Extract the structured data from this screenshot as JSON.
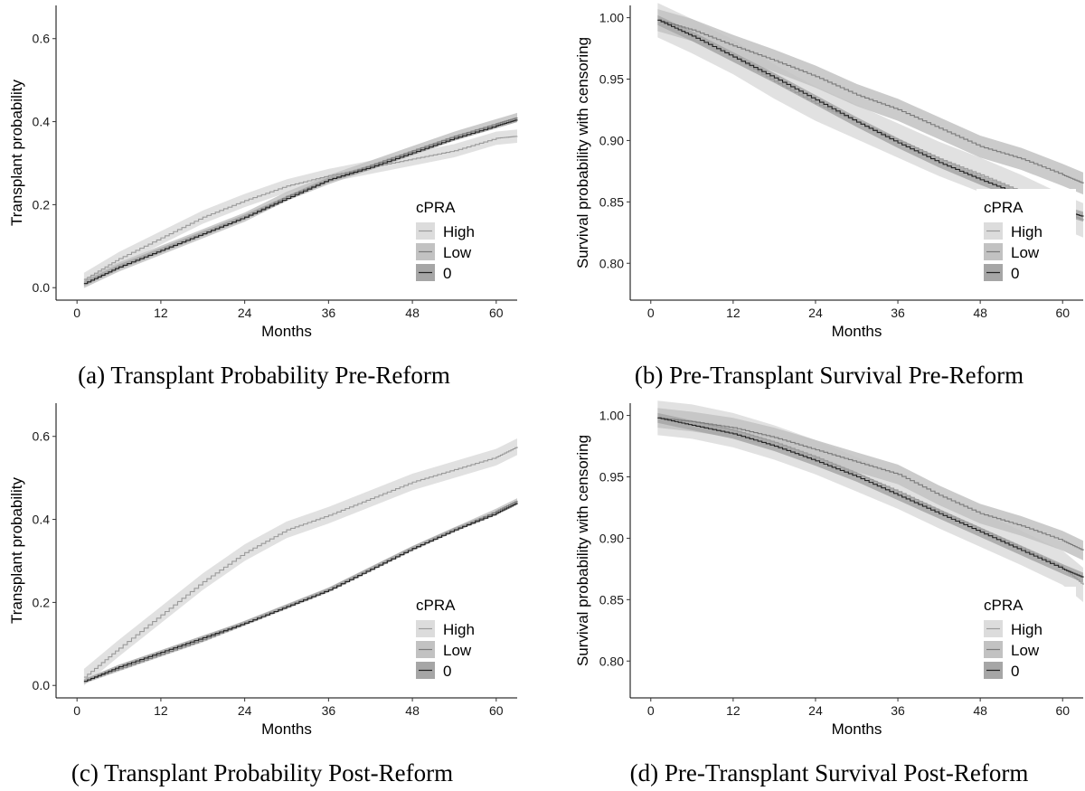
{
  "chart_data": [
    {
      "type": "line",
      "caption": "(a) Transplant Probability Pre-Reform",
      "xlabel": "Months",
      "ylabel": "Transplant probability",
      "xlim": [
        -3,
        63
      ],
      "ylim": [
        -0.03,
        0.68
      ],
      "xticks": [
        0,
        12,
        24,
        36,
        48,
        60
      ],
      "xtick_labels": [
        "0",
        "12",
        "24",
        "36",
        "48",
        "60"
      ],
      "yticks": [
        0.0,
        0.2,
        0.4,
        0.6
      ],
      "ytick_labels": [
        "0.0",
        "0.2",
        "0.4",
        "0.6"
      ],
      "legend": {
        "title": "cPRA",
        "position": "right",
        "entries": [
          "High",
          "Low",
          "0"
        ]
      },
      "series": [
        {
          "name": "High",
          "color": "#9a9a9a",
          "band": "#dcdcdc",
          "band_half": 0.016,
          "x": [
            1,
            6,
            12,
            18,
            24,
            30,
            36,
            42,
            48,
            54,
            60,
            63
          ],
          "values": [
            0.02,
            0.07,
            0.12,
            0.17,
            0.21,
            0.245,
            0.27,
            0.29,
            0.31,
            0.33,
            0.36,
            0.365
          ]
        },
        {
          "name": "Low",
          "color": "#7a7a7a",
          "band": "#c2c2c2",
          "band_half": 0.011,
          "x": [
            1,
            6,
            12,
            18,
            24,
            30,
            36,
            42,
            48,
            54,
            60,
            63
          ],
          "values": [
            0.01,
            0.05,
            0.09,
            0.13,
            0.17,
            0.22,
            0.26,
            0.295,
            0.33,
            0.365,
            0.395,
            0.41
          ]
        },
        {
          "name": "0",
          "color": "#222222",
          "band": "#a6a6a6",
          "band_half": 0.006,
          "x": [
            1,
            6,
            12,
            18,
            24,
            30,
            36,
            42,
            48,
            54,
            60,
            63
          ],
          "values": [
            0.01,
            0.05,
            0.09,
            0.13,
            0.17,
            0.215,
            0.26,
            0.29,
            0.325,
            0.36,
            0.39,
            0.405
          ]
        }
      ]
    },
    {
      "type": "line",
      "caption": "(b) Pre-Transplant Survival Pre-Reform",
      "xlabel": "Months",
      "ylabel": "Survival probability with censoring",
      "xlim": [
        -3,
        63
      ],
      "ylim": [
        0.77,
        1.01
      ],
      "xticks": [
        0,
        12,
        24,
        36,
        48,
        60
      ],
      "xtick_labels": [
        "0",
        "12",
        "24",
        "36",
        "48",
        "60"
      ],
      "yticks": [
        0.8,
        0.85,
        0.9,
        0.95,
        1.0
      ],
      "ytick_labels": [
        "0.80",
        "0.85",
        "0.90",
        "0.95",
        "1.00"
      ],
      "legend": {
        "title": "cPRA",
        "position": "right",
        "entries": [
          "High",
          "Low",
          "0"
        ]
      },
      "series": [
        {
          "name": "High",
          "color": "#9a9a9a",
          "band": "#dcdcdc",
          "band_half": 0.014,
          "x": [
            1,
            6,
            12,
            18,
            24,
            30,
            36,
            42,
            48,
            54,
            60,
            63
          ],
          "values": [
            0.998,
            0.985,
            0.968,
            0.948,
            0.93,
            0.915,
            0.9,
            0.885,
            0.872,
            0.858,
            0.842,
            0.835
          ]
        },
        {
          "name": "Low",
          "color": "#7a7a7a",
          "band": "#c2c2c2",
          "band_half": 0.009,
          "x": [
            1,
            6,
            12,
            18,
            24,
            30,
            36,
            42,
            48,
            54,
            60,
            63
          ],
          "values": [
            0.998,
            0.99,
            0.977,
            0.965,
            0.952,
            0.937,
            0.925,
            0.91,
            0.895,
            0.885,
            0.872,
            0.865
          ]
        },
        {
          "name": "0",
          "color": "#222222",
          "band": "#a6a6a6",
          "band_half": 0.004,
          "x": [
            1,
            6,
            12,
            18,
            24,
            30,
            36,
            42,
            48,
            54,
            60,
            63
          ],
          "values": [
            0.998,
            0.985,
            0.968,
            0.951,
            0.933,
            0.915,
            0.898,
            0.882,
            0.868,
            0.855,
            0.843,
            0.838
          ]
        }
      ]
    },
    {
      "type": "line",
      "caption": "(c) Transplant Probability Post-Reform",
      "xlabel": "Months",
      "ylabel": "Transplant probability",
      "xlim": [
        -3,
        63
      ],
      "ylim": [
        -0.03,
        0.68
      ],
      "xticks": [
        0,
        12,
        24,
        36,
        48,
        60
      ],
      "xtick_labels": [
        "0",
        "12",
        "24",
        "36",
        "48",
        "60"
      ],
      "yticks": [
        0.0,
        0.2,
        0.4,
        0.6
      ],
      "ytick_labels": [
        "0.0",
        "0.2",
        "0.4",
        "0.6"
      ],
      "legend": {
        "title": "cPRA",
        "position": "right",
        "entries": [
          "High",
          "Low",
          "0"
        ]
      },
      "series": [
        {
          "name": "High",
          "color": "#9a9a9a",
          "band": "#dcdcdc",
          "band_half": 0.02,
          "x": [
            1,
            6,
            12,
            18,
            24,
            30,
            36,
            42,
            48,
            54,
            60,
            63
          ],
          "values": [
            0.02,
            0.09,
            0.17,
            0.25,
            0.32,
            0.375,
            0.41,
            0.45,
            0.49,
            0.52,
            0.55,
            0.575
          ]
        },
        {
          "name": "Low",
          "color": "#7a7a7a",
          "band": "#c2c2c2",
          "band_half": 0.006,
          "x": [
            1,
            6,
            12,
            18,
            24,
            30,
            36,
            42,
            48,
            54,
            60,
            63
          ],
          "values": [
            0.01,
            0.04,
            0.075,
            0.11,
            0.15,
            0.19,
            0.23,
            0.28,
            0.33,
            0.375,
            0.42,
            0.445
          ]
        },
        {
          "name": "0",
          "color": "#222222",
          "band": "#a6a6a6",
          "band_half": 0.005,
          "x": [
            1,
            6,
            12,
            18,
            24,
            30,
            36,
            42,
            48,
            54,
            60,
            63
          ],
          "values": [
            0.01,
            0.045,
            0.08,
            0.115,
            0.15,
            0.19,
            0.23,
            0.28,
            0.33,
            0.375,
            0.415,
            0.44
          ]
        }
      ]
    },
    {
      "type": "line",
      "caption": "(d) Pre-Transplant Survival Post-Reform",
      "xlabel": "Months",
      "ylabel": "Survival probability with censoring",
      "xlim": [
        -3,
        63
      ],
      "ylim": [
        0.77,
        1.01
      ],
      "xticks": [
        0,
        12,
        24,
        36,
        48,
        60
      ],
      "xtick_labels": [
        "0",
        "12",
        "24",
        "36",
        "48",
        "60"
      ],
      "yticks": [
        0.8,
        0.85,
        0.9,
        0.95,
        1.0
      ],
      "ytick_labels": [
        "0.80",
        "0.85",
        "0.90",
        "0.95",
        "1.00"
      ],
      "legend": {
        "title": "cPRA",
        "position": "right",
        "entries": [
          "High",
          "Low",
          "0"
        ]
      },
      "series": [
        {
          "name": "High",
          "color": "#9a9a9a",
          "band": "#dcdcdc",
          "band_half": 0.014,
          "x": [
            1,
            6,
            12,
            18,
            24,
            30,
            36,
            42,
            48,
            54,
            60,
            63
          ],
          "values": [
            0.998,
            0.995,
            0.988,
            0.978,
            0.966,
            0.952,
            0.938,
            0.922,
            0.907,
            0.892,
            0.876,
            0.862
          ]
        },
        {
          "name": "Low",
          "color": "#7a7a7a",
          "band": "#c2c2c2",
          "band_half": 0.008,
          "x": [
            1,
            6,
            12,
            18,
            24,
            30,
            36,
            42,
            48,
            54,
            60,
            63
          ],
          "values": [
            0.998,
            0.995,
            0.99,
            0.982,
            0.972,
            0.962,
            0.952,
            0.935,
            0.92,
            0.91,
            0.898,
            0.89
          ]
        },
        {
          "name": "0",
          "color": "#222222",
          "band": "#a6a6a6",
          "band_half": 0.004,
          "x": [
            1,
            6,
            12,
            18,
            24,
            30,
            36,
            42,
            48,
            54,
            60,
            63
          ],
          "values": [
            0.998,
            0.992,
            0.985,
            0.975,
            0.963,
            0.95,
            0.935,
            0.92,
            0.905,
            0.89,
            0.875,
            0.868
          ]
        }
      ]
    }
  ]
}
